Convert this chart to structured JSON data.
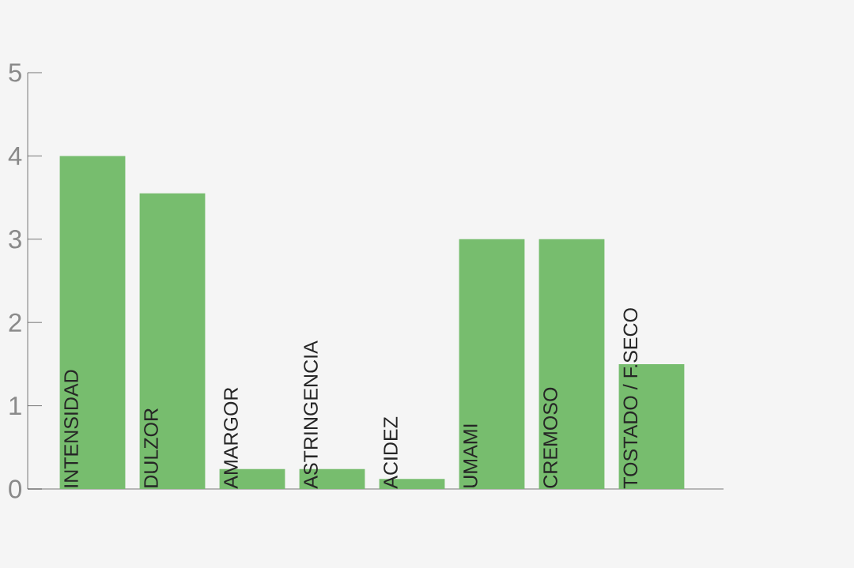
{
  "chart_data": {
    "type": "bar",
    "categories": [
      "INTENSIDAD",
      "DULZOR",
      "AMARGOR",
      "ASTRINGENCIA",
      "ACIDEZ",
      "UMAMI",
      "CREMOSO",
      "TOSTADO / F.SECO"
    ],
    "values": [
      4,
      3.55,
      0.24,
      0.24,
      0.12,
      3,
      3,
      1.5
    ],
    "color": "#77bd6e",
    "ylim": [
      0,
      5
    ],
    "yticks": [
      0,
      1,
      2,
      3,
      4,
      5
    ],
    "grid": false
  }
}
